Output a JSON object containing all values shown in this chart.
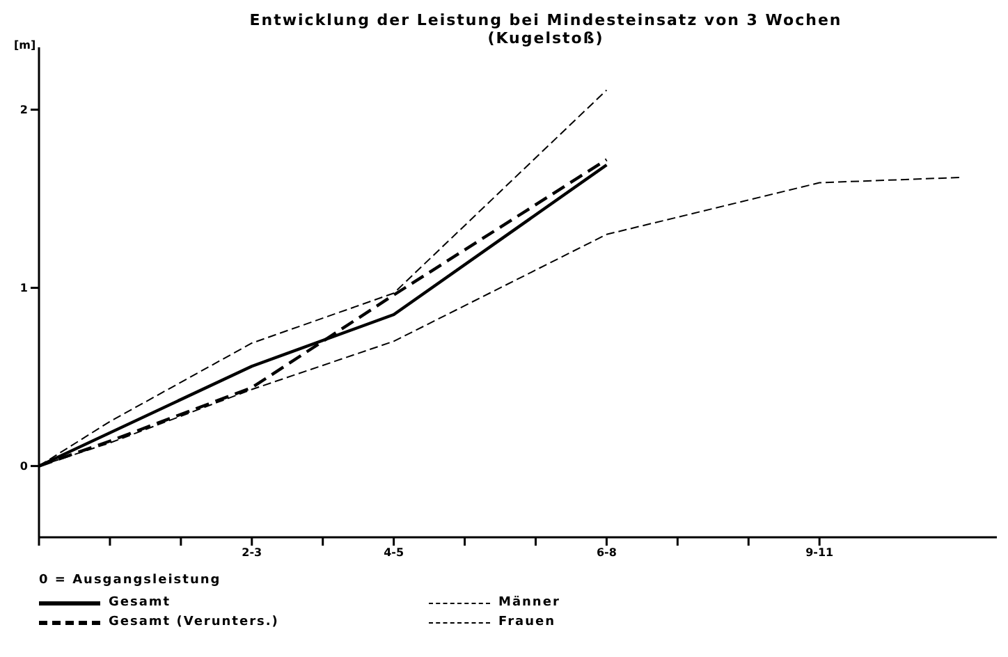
{
  "chart_data": {
    "type": "line",
    "title": "Entwicklung der Leistung bei Mindesteinsatz von 3 Wochen",
    "subtitle": "(Kugelstoß)",
    "ylabel": "[m]",
    "categories": [
      null,
      null,
      null,
      "2-3",
      null,
      "4-5",
      null,
      null,
      "6-8",
      null,
      null,
      "9-11",
      null,
      null
    ],
    "ylim": [
      -0.4,
      2.35
    ],
    "yticks": [
      0,
      1,
      2
    ],
    "legend": "bottom",
    "marker": "none",
    "annotations": [
      "0 = Ausgangsleistung"
    ],
    "series": [
      {
        "name": "Gesamt",
        "color": "#000000",
        "line_style": "solid",
        "values": [
          0,
          null,
          null,
          0.56,
          null,
          0.85,
          null,
          null,
          1.69,
          null,
          null,
          null,
          null,
          null
        ]
      },
      {
        "name": "Gesamt (Verunters.)",
        "color": "#000000",
        "line_style": "dashed",
        "values": [
          0,
          0.14,
          null,
          0.44,
          null,
          0.96,
          null,
          null,
          1.72,
          null,
          null,
          null,
          null,
          null
        ]
      },
      {
        "name": "Männer",
        "color": "#000000",
        "line_style": "dashed",
        "values": [
          0,
          0.25,
          null,
          0.69,
          null,
          0.97,
          null,
          null,
          2.11,
          null,
          null,
          null,
          null,
          null
        ]
      },
      {
        "name": "Frauen",
        "color": "#000000",
        "line_style": "dashed",
        "values": [
          0,
          0.13,
          null,
          0.43,
          null,
          0.7,
          null,
          null,
          1.3,
          null,
          null,
          1.59,
          null,
          1.62
        ]
      }
    ]
  }
}
